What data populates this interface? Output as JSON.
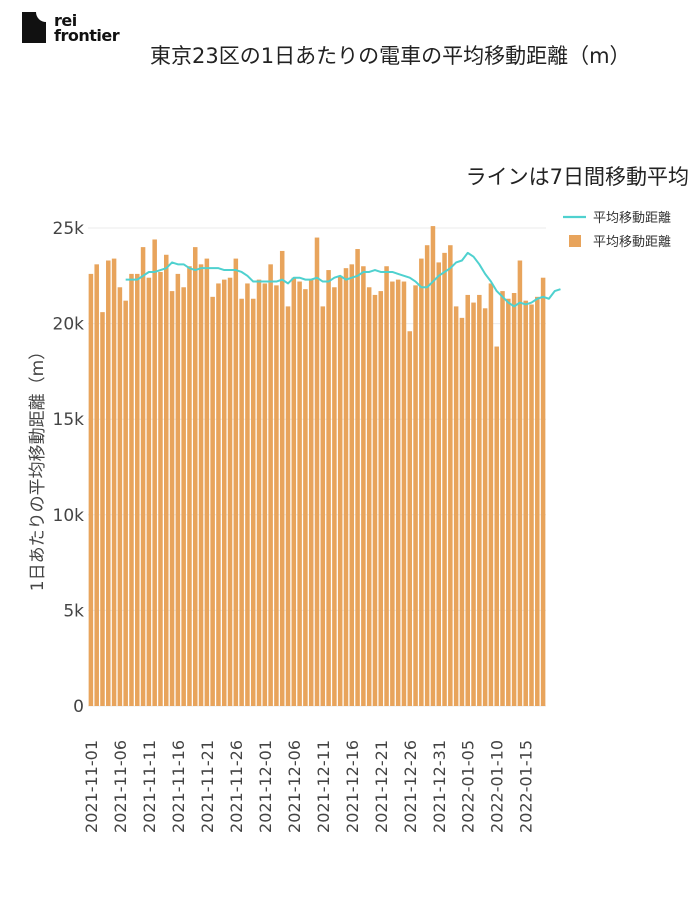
{
  "logo": {
    "line1": "rei",
    "line2": "frontier"
  },
  "chart_data": {
    "type": "bar+line",
    "title": "東京23区の1日あたりの電車の平均移動距離（m）",
    "subtitle": "ラインは7日間移動平均",
    "ylabel": "1日あたりの平均移動距離（m）",
    "ylim": [
      0,
      25000
    ],
    "yticks": [
      {
        "value": 0,
        "label": "0"
      },
      {
        "value": 5000,
        "label": "5k"
      },
      {
        "value": 10000,
        "label": "10k"
      },
      {
        "value": 15000,
        "label": "15k"
      },
      {
        "value": 20000,
        "label": "20k"
      },
      {
        "value": 25000,
        "label": "25k"
      }
    ],
    "xticks": [
      {
        "index": 0,
        "label": "2021-11-01"
      },
      {
        "index": 5,
        "label": "2021-11-06"
      },
      {
        "index": 10,
        "label": "2021-11-11"
      },
      {
        "index": 15,
        "label": "2021-11-16"
      },
      {
        "index": 20,
        "label": "2021-11-21"
      },
      {
        "index": 25,
        "label": "2021-11-26"
      },
      {
        "index": 30,
        "label": "2021-12-01"
      },
      {
        "index": 35,
        "label": "2021-12-06"
      },
      {
        "index": 40,
        "label": "2021-12-11"
      },
      {
        "index": 45,
        "label": "2021-12-16"
      },
      {
        "index": 50,
        "label": "2021-12-21"
      },
      {
        "index": 55,
        "label": "2021-12-26"
      },
      {
        "index": 60,
        "label": "2021-12-31"
      },
      {
        "index": 65,
        "label": "2022-01-05"
      },
      {
        "index": 70,
        "label": "2022-01-10"
      },
      {
        "index": 75,
        "label": "2022-01-15"
      }
    ],
    "legend": {
      "position": "top-right",
      "line_label": "平均移動距離",
      "bar_label": "平均移動距離"
    },
    "colors": {
      "bar": "#e8a45c",
      "line": "#4fd1cf",
      "grid": "#ebebeb"
    },
    "series": [
      {
        "name": "平均移動距離",
        "kind": "bar",
        "x_start": "2021-11-01",
        "values": [
          22600,
          23100,
          20600,
          23300,
          23400,
          21900,
          21200,
          22600,
          22600,
          24000,
          22400,
          24400,
          22700,
          23600,
          21700,
          22600,
          21900,
          23000,
          24000,
          23100,
          23400,
          21400,
          22100,
          22300,
          22400,
          23400,
          21300,
          22100,
          21300,
          22300,
          22100,
          23100,
          22000,
          23800,
          20900,
          22400,
          22200,
          21800,
          22300,
          24500,
          20900,
          22800,
          21900,
          22500,
          22900,
          23100,
          23900,
          23000,
          21900,
          21500,
          21700,
          23000,
          22200,
          22300,
          22200,
          19600,
          22000,
          23400,
          24100,
          25100,
          23200,
          23700,
          24100,
          20900,
          20300,
          21500,
          21100,
          21500,
          20800,
          22100,
          18800,
          21700,
          21300,
          21600,
          23300,
          21200,
          21000,
          21400,
          22400
        ]
      },
      {
        "name": "平均移動距離",
        "kind": "line",
        "x_start_index": 6,
        "values": [
          22300,
          22300,
          22300,
          22500,
          22700,
          22700,
          22800,
          22900,
          23200,
          23100,
          23100,
          22900,
          22800,
          22900,
          22900,
          22900,
          22900,
          22800,
          22800,
          22800,
          22700,
          22500,
          22200,
          22200,
          22200,
          22200,
          22200,
          22300,
          22100,
          22400,
          22400,
          22300,
          22300,
          22400,
          22200,
          22200,
          22400,
          22500,
          22300,
          22400,
          22500,
          22700,
          22700,
          22800,
          22700,
          22700,
          22700,
          22600,
          22500,
          22400,
          22200,
          21900,
          21900,
          22200,
          22500,
          22700,
          22900,
          23200,
          23300,
          23700,
          23500,
          23100,
          22600,
          22200,
          21700,
          21400,
          21100,
          20900,
          21100,
          21000,
          21100,
          21300,
          21400,
          21300,
          21700,
          21800
        ]
      }
    ]
  }
}
